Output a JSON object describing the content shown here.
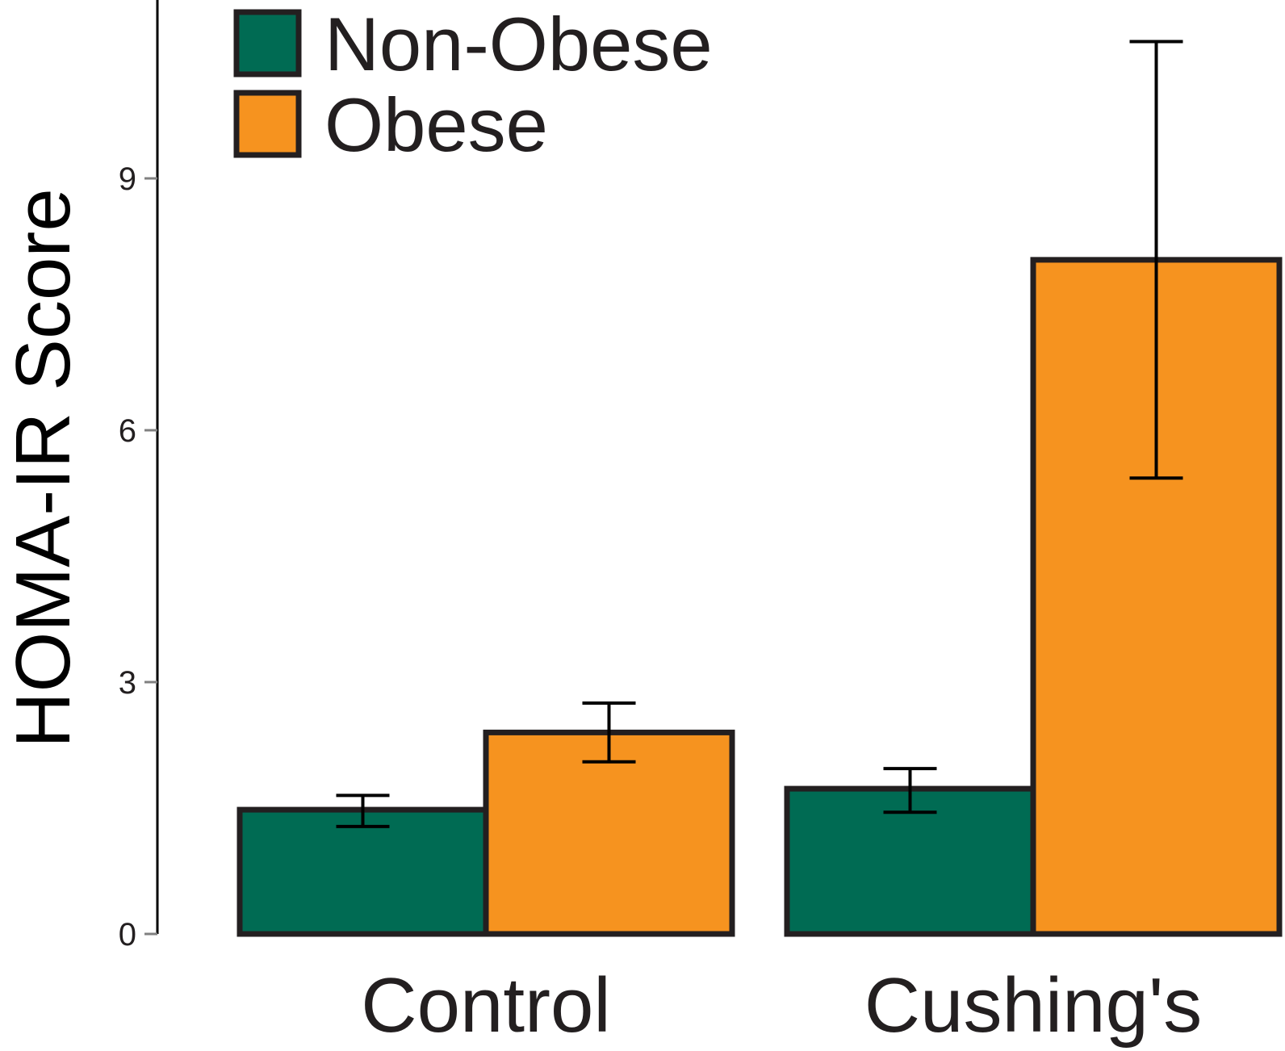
{
  "chart_data": {
    "type": "bar",
    "title": "",
    "xlabel": "",
    "ylabel": "HOMA-IR Score",
    "categories": [
      "Control",
      "Cushing's"
    ],
    "series": [
      {
        "name": "Non-Obese",
        "color": "#006b53",
        "values": [
          1.48,
          1.73
        ],
        "error_low": [
          1.28,
          1.45
        ],
        "error_high": [
          1.65,
          1.97
        ]
      },
      {
        "name": "Obese",
        "color": "#f6931f",
        "values": [
          2.4,
          8.03
        ],
        "error_low": [
          2.05,
          5.43
        ],
        "error_high": [
          2.75,
          10.63
        ]
      }
    ],
    "yticks": [
      0,
      3,
      6,
      9
    ],
    "ylim": [
      0,
      11.1
    ],
    "legend_position": "top-left",
    "grid": false
  }
}
